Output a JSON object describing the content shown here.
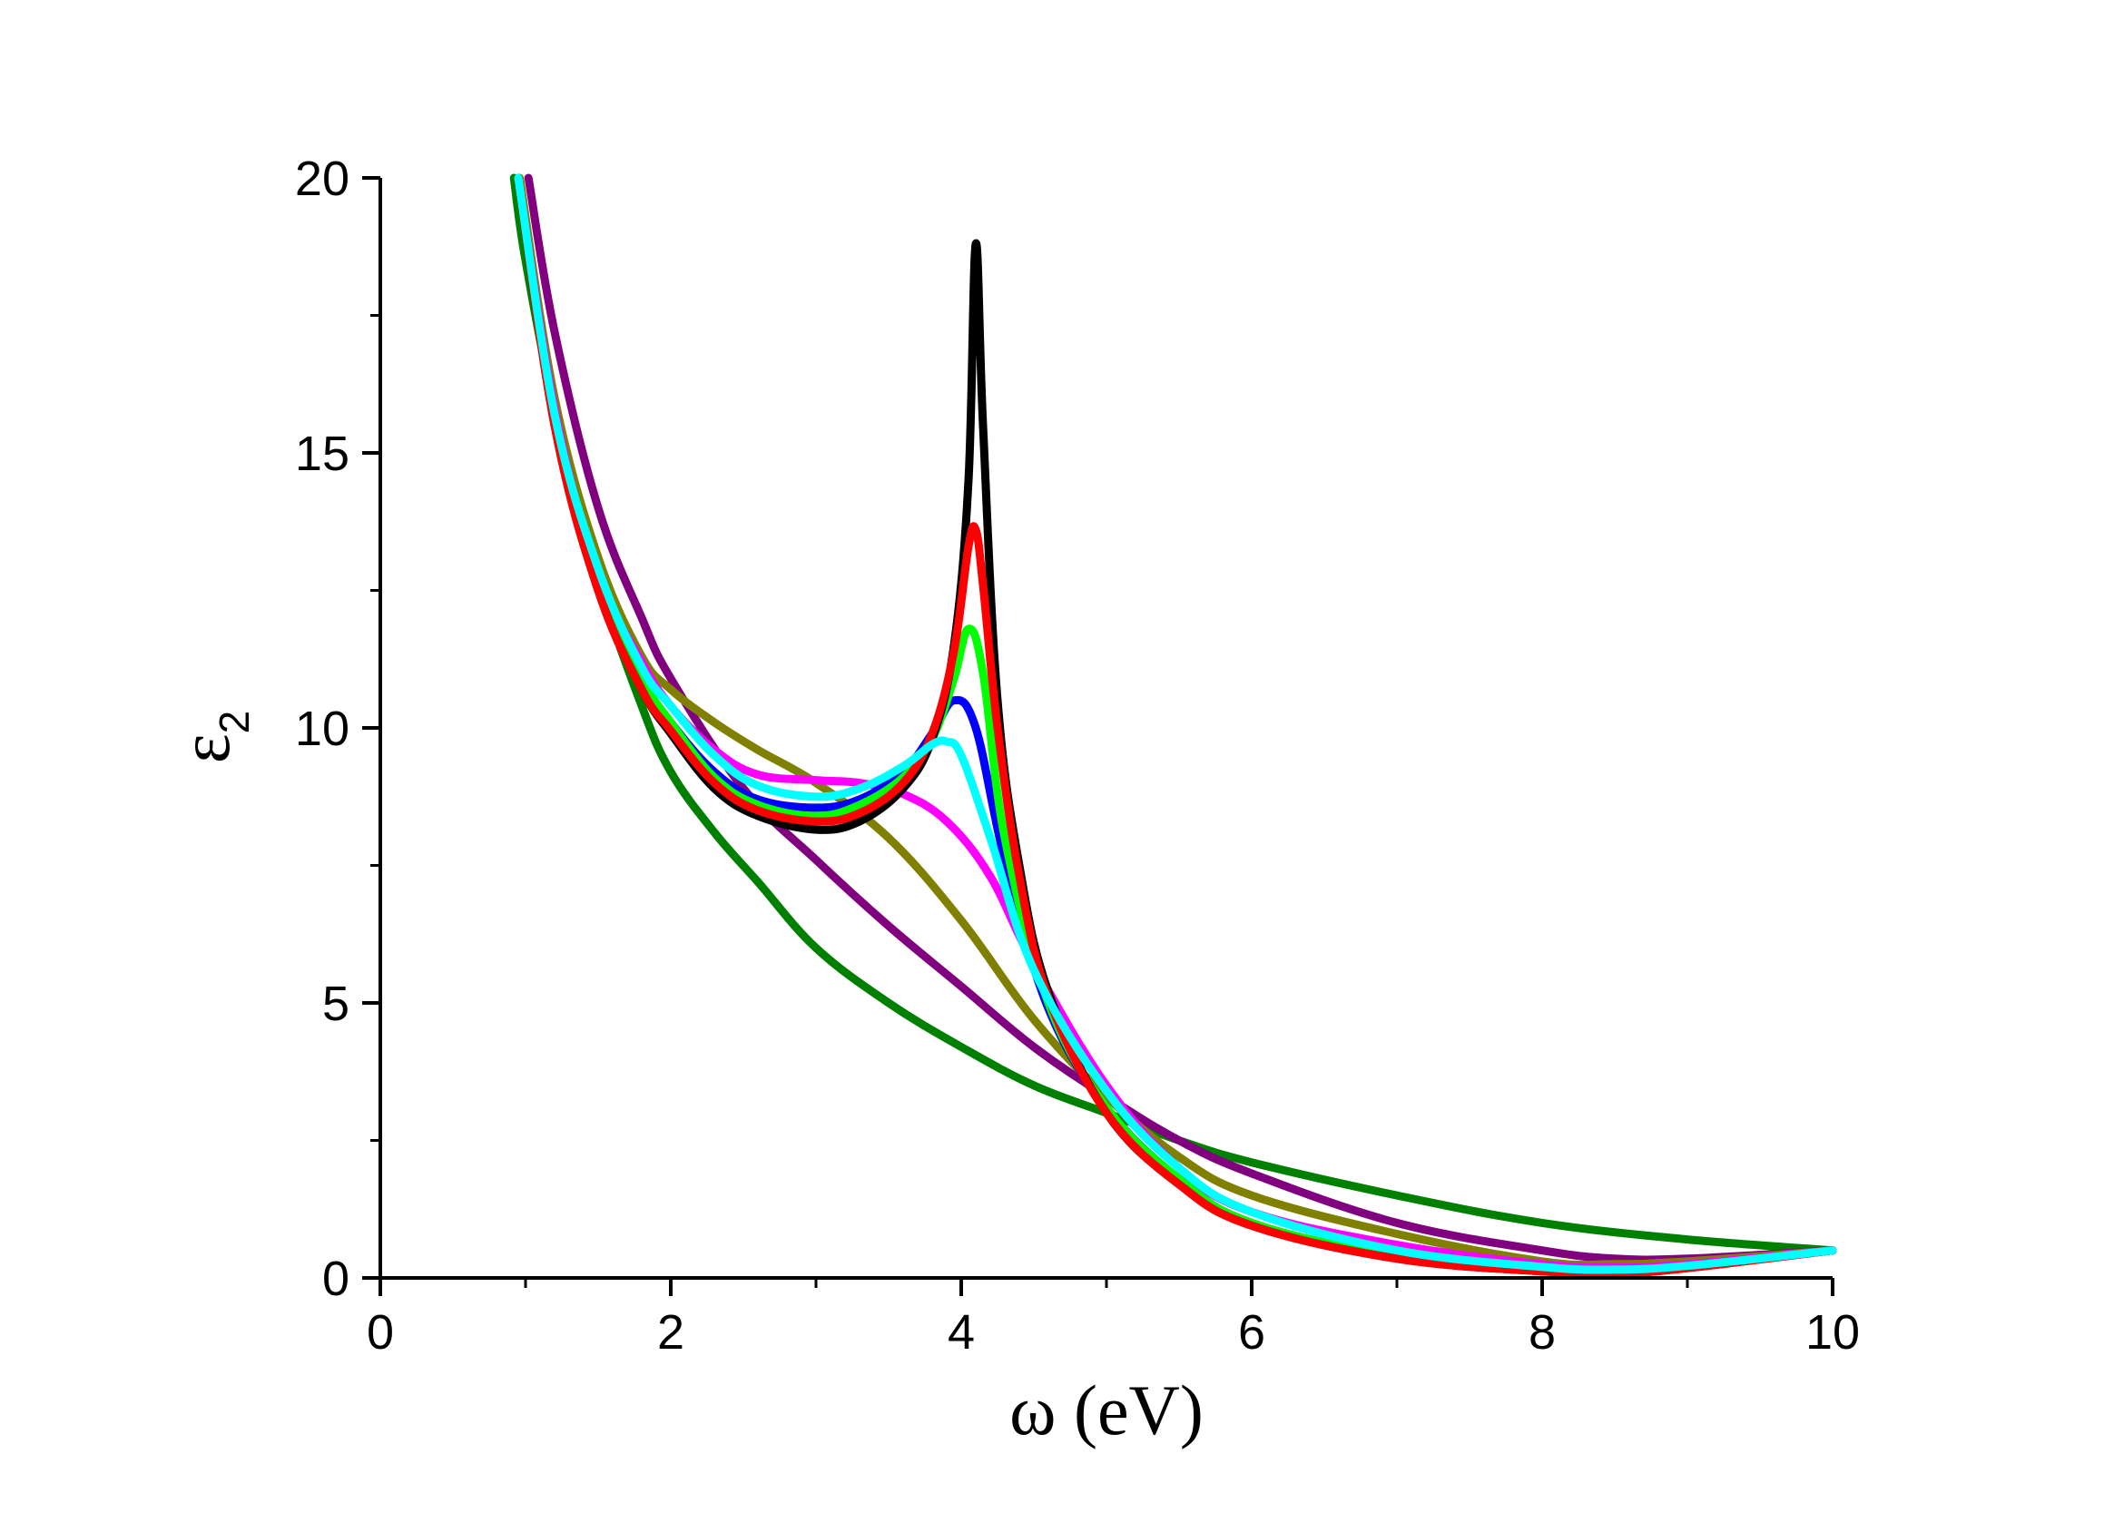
{
  "chart_data": {
    "type": "line",
    "title": "",
    "xlabel": "ω (eV)",
    "ylabel": {
      "main": "ε",
      "sub": "2"
    },
    "xlim": [
      0,
      10
    ],
    "ylim": [
      0,
      20
    ],
    "x_ticks": [
      0,
      2,
      4,
      6,
      8,
      10
    ],
    "y_ticks": [
      0,
      5,
      10,
      15,
      20
    ],
    "x_tick_labels": [
      "0",
      "2",
      "4",
      "6",
      "8",
      "10"
    ],
    "y_tick_labels": [
      "0",
      "5",
      "10",
      "15",
      "20"
    ],
    "grid": false,
    "legend": "none",
    "series": [
      {
        "color": "#008000",
        "x": [
          0.92,
          1.0,
          1.2,
          1.5,
          1.8,
          2.0,
          2.3,
          2.6,
          3.0,
          3.5,
          4.0,
          4.5,
          5.0,
          5.5,
          6.0,
          7.0,
          8.0,
          9.0,
          10.0
        ],
        "y": [
          20.0,
          18.5,
          15.8,
          12.7,
          10.4,
          9.2,
          8.1,
          7.2,
          6.0,
          5.0,
          4.2,
          3.5,
          3.0,
          2.5,
          2.1,
          1.5,
          1.0,
          0.7,
          0.5
        ]
      },
      {
        "color": "#800080",
        "x": [
          1.02,
          1.2,
          1.5,
          1.8,
          2.0,
          2.5,
          3.0,
          3.5,
          4.0,
          4.5,
          5.0,
          5.5,
          6.0,
          7.0,
          8.0,
          8.5,
          9.0,
          10.0
        ],
        "y": [
          20.0,
          17.2,
          14.0,
          12.0,
          10.9,
          8.9,
          7.6,
          6.4,
          5.3,
          4.2,
          3.3,
          2.5,
          1.9,
          1.0,
          0.5,
          0.35,
          0.35,
          0.5
        ]
      },
      {
        "color": "#808000",
        "x": [
          0.96,
          1.2,
          1.5,
          1.8,
          2.0,
          2.3,
          2.6,
          3.0,
          3.5,
          4.0,
          4.5,
          5.0,
          5.5,
          6.0,
          7.0,
          8.0,
          8.5,
          9.0,
          10.0
        ],
        "y": [
          20.0,
          16.0,
          13.1,
          11.3,
          10.7,
          10.1,
          9.6,
          9.0,
          8.0,
          6.5,
          4.7,
          3.3,
          2.2,
          1.5,
          0.8,
          0.3,
          0.25,
          0.3,
          0.5
        ]
      },
      {
        "color": "#ff00ff",
        "x": [
          0.95,
          1.2,
          1.5,
          1.8,
          2.0,
          2.3,
          2.6,
          3.0,
          3.3,
          3.6,
          3.9,
          4.2,
          4.5,
          5.0,
          5.5,
          6.0,
          7.0,
          8.0,
          8.5,
          9.0,
          10.0
        ],
        "y": [
          20.0,
          15.8,
          12.8,
          11.2,
          10.4,
          9.6,
          9.15,
          9.05,
          9.0,
          8.8,
          8.3,
          7.3,
          5.7,
          3.5,
          2.0,
          1.2,
          0.6,
          0.25,
          0.2,
          0.25,
          0.5
        ]
      },
      {
        "color": "#0000ff",
        "x": [
          0.95,
          1.2,
          1.5,
          1.8,
          2.0,
          2.3,
          2.6,
          3.0,
          3.3,
          3.6,
          3.8,
          3.95,
          4.1,
          4.3,
          4.6,
          5.0,
          5.5,
          6.0,
          7.0,
          8.0,
          8.5,
          9.0,
          10.0
        ],
        "y": [
          20.0,
          15.6,
          12.6,
          10.9,
          10.1,
          9.2,
          8.7,
          8.55,
          8.7,
          9.2,
          9.9,
          10.5,
          10.0,
          7.6,
          4.9,
          3.1,
          1.8,
          1.0,
          0.4,
          0.15,
          0.1,
          0.2,
          0.5
        ]
      },
      {
        "color": "#00ff00",
        "x": [
          0.95,
          1.2,
          1.5,
          1.8,
          2.0,
          2.3,
          2.6,
          3.0,
          3.3,
          3.6,
          3.8,
          3.95,
          4.05,
          4.15,
          4.3,
          4.6,
          5.0,
          5.5,
          6.0,
          7.0,
          8.0,
          8.5,
          9.0,
          10.0
        ],
        "y": [
          20.0,
          15.6,
          12.6,
          10.9,
          10.1,
          9.1,
          8.6,
          8.4,
          8.6,
          9.1,
          9.8,
          10.9,
          11.8,
          11.0,
          8.0,
          5.0,
          3.1,
          1.8,
          1.0,
          0.4,
          0.15,
          0.1,
          0.2,
          0.5
        ]
      },
      {
        "color": "#000000",
        "x": [
          0.95,
          1.2,
          1.5,
          1.8,
          2.0,
          2.3,
          2.6,
          3.0,
          3.3,
          3.6,
          3.8,
          3.95,
          4.05,
          4.1,
          4.15,
          4.25,
          4.4,
          4.6,
          5.0,
          5.5,
          6.0,
          7.0,
          8.0,
          8.5,
          9.0,
          10.0
        ],
        "y": [
          20.0,
          15.5,
          12.5,
          10.7,
          9.9,
          8.9,
          8.4,
          8.15,
          8.3,
          8.9,
          9.8,
          11.5,
          14.5,
          18.8,
          15.5,
          10.5,
          7.5,
          5.2,
          3.0,
          1.7,
          0.95,
          0.35,
          0.12,
          0.08,
          0.18,
          0.5
        ]
      },
      {
        "color": "#ff0000",
        "x": [
          0.95,
          1.2,
          1.5,
          1.8,
          2.0,
          2.3,
          2.6,
          3.0,
          3.3,
          3.6,
          3.8,
          3.95,
          4.05,
          4.1,
          4.15,
          4.25,
          4.4,
          4.6,
          5.0,
          5.5,
          6.0,
          7.0,
          8.0,
          8.5,
          9.0,
          10.0
        ],
        "y": [
          20.0,
          15.5,
          12.5,
          10.7,
          9.95,
          9.0,
          8.5,
          8.3,
          8.45,
          9.0,
          9.9,
          11.4,
          13.3,
          13.6,
          12.6,
          10.0,
          7.3,
          5.1,
          3.0,
          1.7,
          0.95,
          0.35,
          0.12,
          0.08,
          0.18,
          0.5
        ]
      },
      {
        "color": "#00ffff",
        "x": [
          0.95,
          1.2,
          1.5,
          1.8,
          2.0,
          2.3,
          2.6,
          3.0,
          3.3,
          3.6,
          3.8,
          3.9,
          4.0,
          4.2,
          4.5,
          5.0,
          5.5,
          6.0,
          7.0,
          8.0,
          8.5,
          9.0,
          10.0
        ],
        "y": [
          20.0,
          15.7,
          12.9,
          11.1,
          10.4,
          9.5,
          8.95,
          8.75,
          8.9,
          9.3,
          9.7,
          9.75,
          9.5,
          8.0,
          5.6,
          3.4,
          2.0,
          1.2,
          0.5,
          0.2,
          0.15,
          0.22,
          0.5
        ]
      }
    ]
  }
}
